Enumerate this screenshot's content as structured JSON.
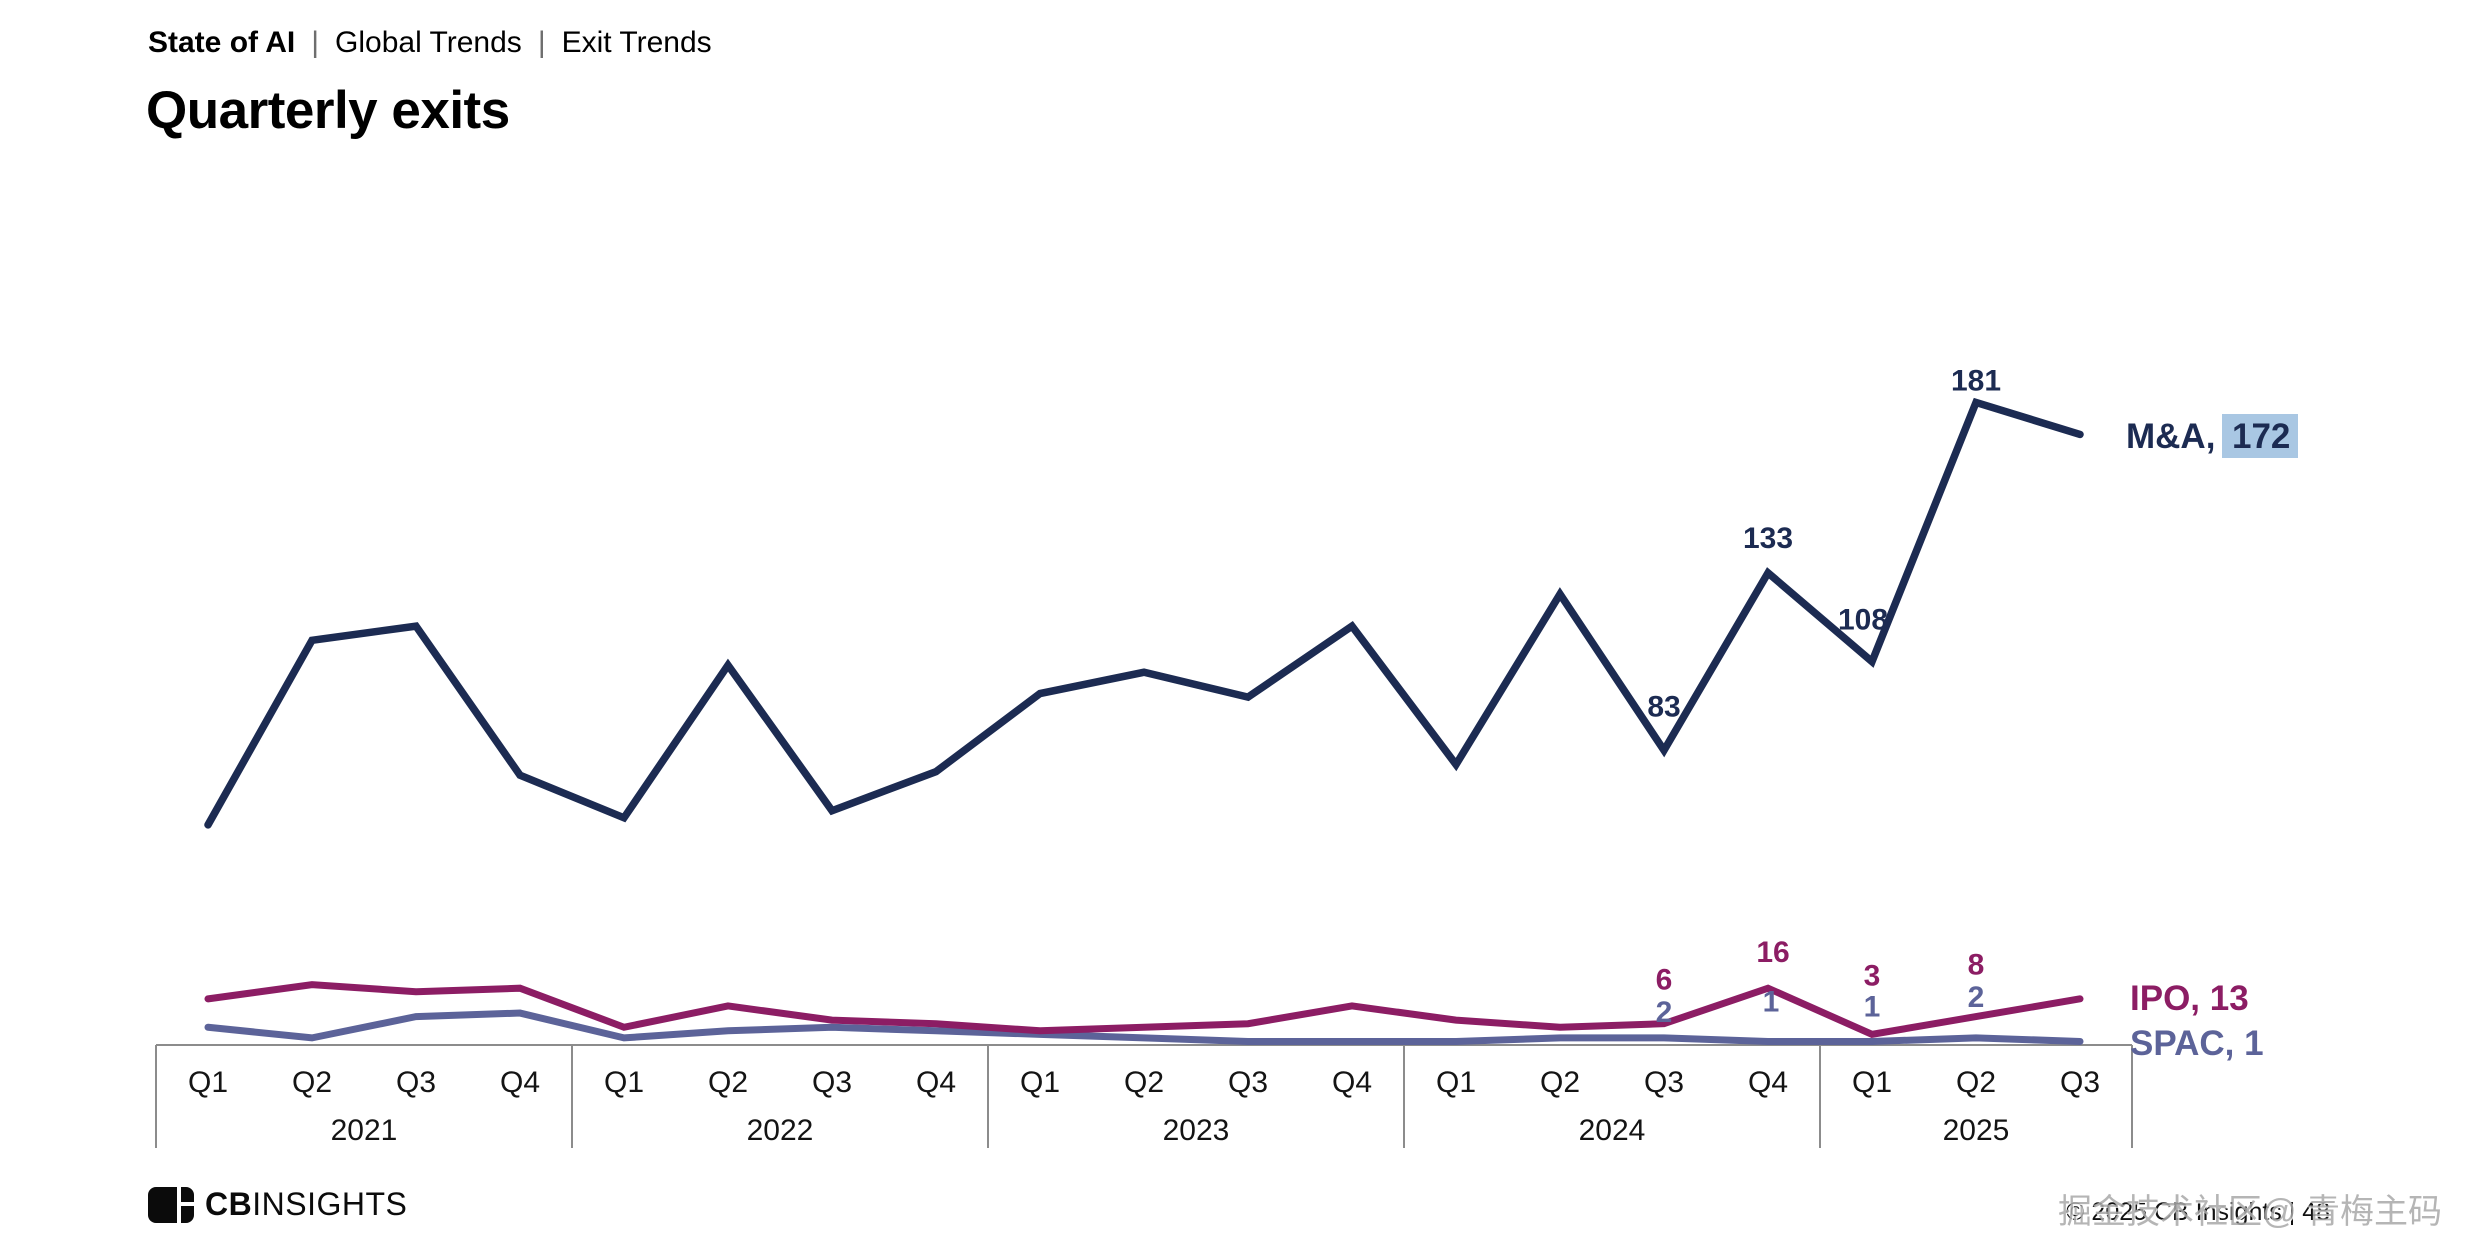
{
  "header": {
    "breadcrumb": [
      "State of AI",
      "Global Trends",
      "Exit Trends"
    ],
    "separator": "|",
    "title": "Quarterly exits"
  },
  "chart_data": {
    "type": "line",
    "title": "Quarterly exits",
    "xlabel": "",
    "ylabel": "",
    "ylim": [
      0,
      195
    ],
    "grid": false,
    "legend_position": "right-end-labels",
    "categories": [
      "Q1 2021",
      "Q2 2021",
      "Q3 2021",
      "Q4 2021",
      "Q1 2022",
      "Q2 2022",
      "Q3 2022",
      "Q4 2022",
      "Q1 2023",
      "Q2 2023",
      "Q3 2023",
      "Q4 2023",
      "Q1 2024",
      "Q2 2024",
      "Q3 2024",
      "Q4 2024",
      "Q1 2025",
      "Q2 2025",
      "Q3 2025"
    ],
    "x_quarters": [
      "Q1",
      "Q2",
      "Q3",
      "Q4",
      "Q1",
      "Q2",
      "Q3",
      "Q4",
      "Q1",
      "Q2",
      "Q3",
      "Q4",
      "Q1",
      "Q2",
      "Q3",
      "Q4",
      "Q1",
      "Q2",
      "Q3"
    ],
    "year_groups": [
      {
        "label": "2021",
        "quarters": 4
      },
      {
        "label": "2022",
        "quarters": 4
      },
      {
        "label": "2023",
        "quarters": 4
      },
      {
        "label": "2024",
        "quarters": 4
      },
      {
        "label": "2025",
        "quarters": 3
      }
    ],
    "series": [
      {
        "name": "M&A",
        "color": "#1C2B52",
        "values": [
          62,
          114,
          118,
          76,
          64,
          107,
          66,
          77,
          99,
          105,
          98,
          118,
          79,
          127,
          83,
          133,
          108,
          181,
          172
        ],
        "labeled_points": {
          "14": "83",
          "15": "133",
          "16": "108",
          "17": "181"
        },
        "end_label": {
          "prefix": "M&A, ",
          "value": "172",
          "highlight": "#A9C7E3"
        }
      },
      {
        "name": "IPO",
        "color": "#8C1D64",
        "values": [
          13,
          17,
          15,
          16,
          5,
          11,
          7,
          6,
          4,
          5,
          6,
          11,
          7,
          5,
          6,
          16,
          3,
          8,
          13
        ],
        "labeled_points": {
          "14": "6",
          "15": "16",
          "16": "3",
          "17": "8"
        },
        "end_label": {
          "prefix": "IPO, ",
          "value": "13"
        }
      },
      {
        "name": "SPAC",
        "color": "#5C6399",
        "values": [
          5,
          2,
          8,
          9,
          2,
          4,
          5,
          4,
          3,
          2,
          1,
          1,
          1,
          2,
          2,
          1,
          1,
          2,
          1
        ],
        "labeled_points": {
          "14": "2",
          "15": "1",
          "16": "1",
          "17": "2"
        },
        "end_label": {
          "prefix": "SPAC, ",
          "value": "1"
        }
      }
    ]
  },
  "footer": {
    "logo_cb": "CB",
    "logo_insights": "INSIGHTS",
    "copyright": "© 2025 CB Insights | 48",
    "watermark": "掘金技术社区@ 青梅主码"
  }
}
